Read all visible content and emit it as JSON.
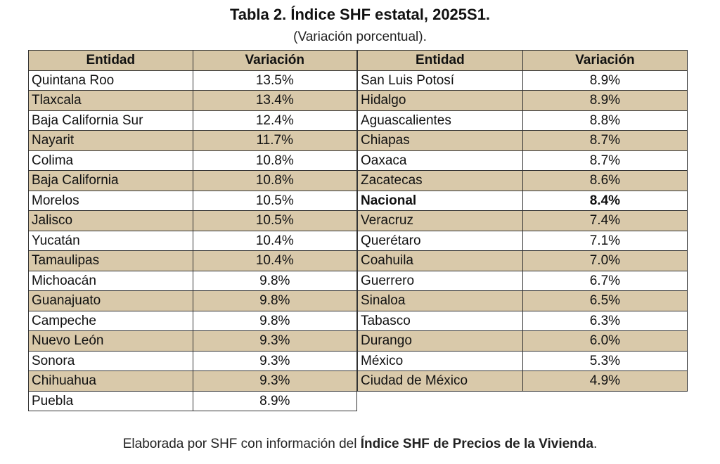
{
  "title": "Tabla 2. Índice SHF estatal, 2025S1.",
  "subtitle": "(Variación porcentual).",
  "tables": [
    {
      "headers": [
        "Entidad",
        "Variación"
      ],
      "rows": [
        {
          "entidad": "Quintana Roo",
          "variacion": "13.5%"
        },
        {
          "entidad": "Tlaxcala",
          "variacion": "13.4%"
        },
        {
          "entidad": "Baja California Sur",
          "variacion": "12.4%"
        },
        {
          "entidad": "Nayarit",
          "variacion": "11.7%"
        },
        {
          "entidad": "Colima",
          "variacion": "10.8%"
        },
        {
          "entidad": "Baja California",
          "variacion": "10.8%"
        },
        {
          "entidad": "Morelos",
          "variacion": "10.5%"
        },
        {
          "entidad": "Jalisco",
          "variacion": "10.5%"
        },
        {
          "entidad": "Yucatán",
          "variacion": "10.4%"
        },
        {
          "entidad": "Tamaulipas",
          "variacion": "10.4%"
        },
        {
          "entidad": "Michoacán",
          "variacion": "9.8%"
        },
        {
          "entidad": "Guanajuato",
          "variacion": "9.8%"
        },
        {
          "entidad": "Campeche",
          "variacion": "9.8%"
        },
        {
          "entidad": "Nuevo León",
          "variacion": "9.3%"
        },
        {
          "entidad": "Sonora",
          "variacion": "9.3%"
        },
        {
          "entidad": "Chihuahua",
          "variacion": "9.3%"
        },
        {
          "entidad": "Puebla",
          "variacion": "8.9%"
        }
      ]
    },
    {
      "headers": [
        "Entidad",
        "Variación"
      ],
      "rows": [
        {
          "entidad": "San Luis Potosí",
          "variacion": "8.9%"
        },
        {
          "entidad": "Hidalgo",
          "variacion": "8.9%"
        },
        {
          "entidad": "Aguascalientes",
          "variacion": "8.8%"
        },
        {
          "entidad": "Chiapas",
          "variacion": "8.7%"
        },
        {
          "entidad": "Oaxaca",
          "variacion": "8.7%"
        },
        {
          "entidad": "Zacatecas",
          "variacion": "8.6%"
        },
        {
          "entidad": "Nacional",
          "variacion": "8.4%",
          "bold": true
        },
        {
          "entidad": "Veracruz",
          "variacion": "7.4%"
        },
        {
          "entidad": "Querétaro",
          "variacion": "7.1%"
        },
        {
          "entidad": "Coahuila",
          "variacion": "7.0%"
        },
        {
          "entidad": "Guerrero",
          "variacion": "6.7%"
        },
        {
          "entidad": "Sinaloa",
          "variacion": "6.5%"
        },
        {
          "entidad": "Tabasco",
          "variacion": "6.3%"
        },
        {
          "entidad": "Durango",
          "variacion": "6.0%"
        },
        {
          "entidad": "México",
          "variacion": "5.3%"
        },
        {
          "entidad": "Ciudad de México",
          "variacion": "4.9%"
        }
      ]
    }
  ],
  "footer": {
    "text": "Elaborada por SHF con información del ",
    "bold": "Índice SHF de Precios de la Vivienda",
    "end": "."
  }
}
